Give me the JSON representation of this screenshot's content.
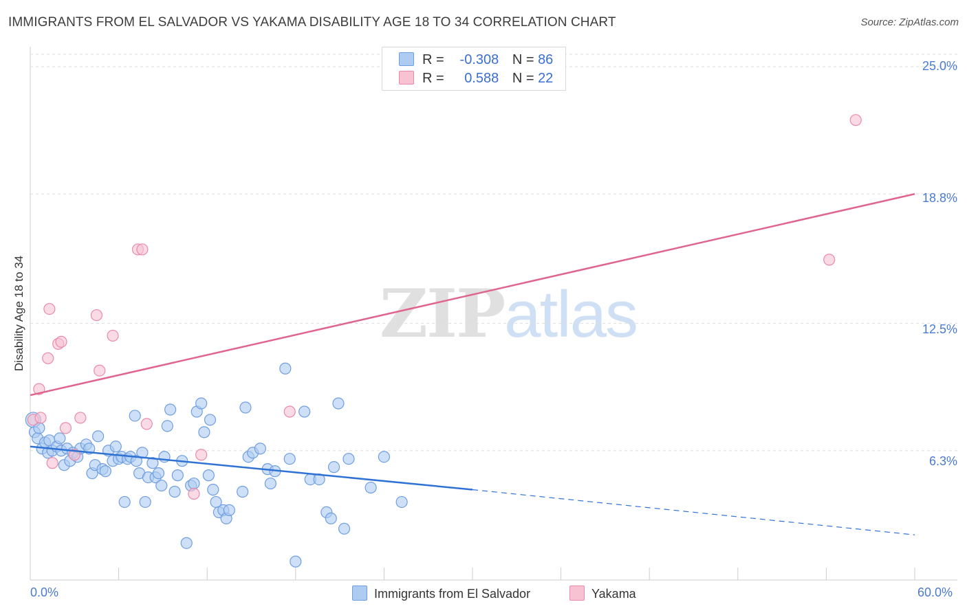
{
  "header": {
    "title": "IMMIGRANTS FROM EL SALVADOR VS YAKAMA DISABILITY AGE 18 TO 34 CORRELATION CHART",
    "source": "Source: ZipAtlas.com"
  },
  "watermark": {
    "zip": "ZIP",
    "atlas": "atlas"
  },
  "legend": {
    "rows": [
      {
        "r_label": "R =",
        "r_value": "-0.308",
        "n_label": "N =",
        "n_value": "86",
        "color": "#aecbf2",
        "edge": "#6f9ee0"
      },
      {
        "r_label": "R =",
        "r_value": "0.588",
        "n_label": "N =",
        "n_value": "22",
        "color": "#f7c3d3",
        "edge": "#e98aa8"
      }
    ]
  },
  "chart_data": {
    "type": "scatter",
    "ylabel": "Disability Age 18 to 34",
    "xlim": [
      0,
      60
    ],
    "ylim": [
      0,
      25
    ],
    "x_tick_labels": [
      "0.0%",
      "60.0%"
    ],
    "y_tick_labels": [
      "25.0%",
      "18.8%",
      "12.5%",
      "6.3%"
    ],
    "y_ticks": [
      25.0,
      18.8,
      12.5,
      6.3
    ],
    "series": [
      {
        "name": "Immigrants from El Salvador",
        "color": "#aecbf2",
        "edge": "#6f9ee0",
        "trend_color": "#2f72d4",
        "trend": {
          "x0": 0,
          "y0": 6.5,
          "x1": 30,
          "y1": 4.4,
          "dash_to_x": 60,
          "dash_to_y": 2.2
        },
        "points": [
          [
            0.2,
            7.8
          ],
          [
            0.3,
            7.2
          ],
          [
            0.5,
            6.9
          ],
          [
            0.8,
            6.4
          ],
          [
            1.0,
            6.7
          ],
          [
            1.2,
            6.2
          ],
          [
            1.3,
            6.8
          ],
          [
            1.5,
            6.3
          ],
          [
            1.8,
            6.5
          ],
          [
            2.1,
            6.3
          ],
          [
            2.3,
            5.6
          ],
          [
            2.5,
            6.4
          ],
          [
            2.7,
            5.8
          ],
          [
            2.9,
            6.2
          ],
          [
            3.2,
            6.0
          ],
          [
            3.4,
            6.4
          ],
          [
            3.8,
            6.6
          ],
          [
            4.0,
            6.4
          ],
          [
            4.2,
            5.2
          ],
          [
            4.4,
            5.6
          ],
          [
            4.6,
            7.0
          ],
          [
            4.9,
            5.4
          ],
          [
            5.1,
            5.3
          ],
          [
            5.3,
            6.3
          ],
          [
            5.6,
            5.8
          ],
          [
            5.8,
            6.5
          ],
          [
            6.0,
            5.9
          ],
          [
            6.2,
            6.0
          ],
          [
            6.4,
            3.8
          ],
          [
            6.6,
            5.9
          ],
          [
            6.8,
            6.0
          ],
          [
            7.1,
            8.0
          ],
          [
            7.2,
            5.8
          ],
          [
            7.4,
            5.2
          ],
          [
            7.6,
            6.2
          ],
          [
            7.8,
            3.8
          ],
          [
            8.0,
            5.0
          ],
          [
            8.3,
            5.7
          ],
          [
            8.5,
            5.0
          ],
          [
            8.7,
            5.2
          ],
          [
            8.9,
            4.6
          ],
          [
            9.1,
            6.0
          ],
          [
            9.3,
            7.5
          ],
          [
            9.5,
            8.3
          ],
          [
            9.8,
            4.3
          ],
          [
            10.0,
            5.1
          ],
          [
            10.3,
            5.8
          ],
          [
            10.6,
            1.8
          ],
          [
            10.9,
            4.6
          ],
          [
            11.1,
            4.7
          ],
          [
            11.3,
            8.2
          ],
          [
            11.6,
            8.6
          ],
          [
            11.8,
            7.2
          ],
          [
            12.1,
            5.1
          ],
          [
            12.4,
            4.4
          ],
          [
            12.6,
            3.8
          ],
          [
            12.8,
            3.3
          ],
          [
            13.1,
            3.4
          ],
          [
            13.3,
            3.0
          ],
          [
            13.5,
            3.4
          ],
          [
            14.4,
            4.3
          ],
          [
            14.6,
            8.4
          ],
          [
            14.8,
            6.0
          ],
          [
            15.1,
            6.2
          ],
          [
            15.6,
            6.4
          ],
          [
            16.1,
            5.4
          ],
          [
            16.3,
            4.7
          ],
          [
            16.6,
            5.3
          ],
          [
            17.3,
            10.3
          ],
          [
            17.6,
            5.9
          ],
          [
            18.0,
            0.9
          ],
          [
            18.6,
            8.2
          ],
          [
            19.0,
            4.9
          ],
          [
            19.6,
            4.9
          ],
          [
            20.1,
            3.3
          ],
          [
            20.4,
            3.0
          ],
          [
            20.6,
            5.5
          ],
          [
            20.9,
            8.6
          ],
          [
            21.3,
            2.5
          ],
          [
            21.6,
            5.9
          ],
          [
            23.1,
            4.5
          ],
          [
            24.0,
            6.0
          ],
          [
            25.2,
            3.8
          ],
          [
            12.2,
            7.8
          ],
          [
            2.0,
            6.9
          ],
          [
            0.6,
            7.4
          ]
        ]
      },
      {
        "name": "Yakama",
        "color": "#f7c3d3",
        "edge": "#e98aa8",
        "trend_color": "#e0648f",
        "trend": {
          "x0": 0,
          "y0": 9.0,
          "x1": 60,
          "y1": 18.8
        },
        "points": [
          [
            0.2,
            7.8
          ],
          [
            0.6,
            9.3
          ],
          [
            0.7,
            7.9
          ],
          [
            1.2,
            10.8
          ],
          [
            1.3,
            13.2
          ],
          [
            1.5,
            5.7
          ],
          [
            1.9,
            11.5
          ],
          [
            2.1,
            11.6
          ],
          [
            2.4,
            7.4
          ],
          [
            3.0,
            6.1
          ],
          [
            3.4,
            7.9
          ],
          [
            4.5,
            12.9
          ],
          [
            4.7,
            10.2
          ],
          [
            5.6,
            11.9
          ],
          [
            7.3,
            16.1
          ],
          [
            7.6,
            16.1
          ],
          [
            7.9,
            7.6
          ],
          [
            11.1,
            4.2
          ],
          [
            11.6,
            6.1
          ],
          [
            17.6,
            8.2
          ],
          [
            54.2,
            15.6
          ],
          [
            56.0,
            22.4
          ]
        ]
      }
    ],
    "grid": true,
    "legend_position": "top-center"
  }
}
